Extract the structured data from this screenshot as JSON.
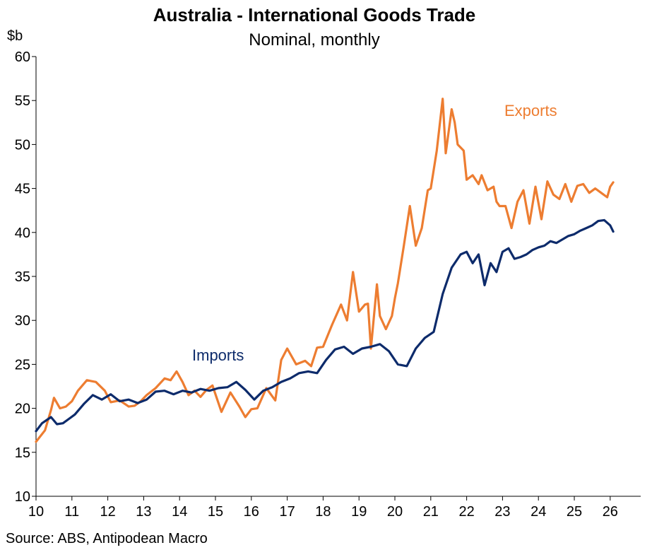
{
  "chart_data": {
    "type": "line",
    "title": "Australia - International Goods Trade",
    "subtitle": "Nominal, monthly",
    "ylabel": "$b",
    "xlabel": "",
    "ylim": [
      10,
      60
    ],
    "y_ticks": [
      10,
      15,
      20,
      25,
      30,
      35,
      40,
      45,
      50,
      55,
      60
    ],
    "x_ticks": [
      "10",
      "11",
      "12",
      "13",
      "14",
      "15",
      "16",
      "17",
      "18",
      "19",
      "20",
      "21",
      "22",
      "23",
      "24",
      "25",
      "26"
    ],
    "x_unit": "calendar year (two-digit), monthly observations",
    "grid": false,
    "source": "Source: ABS, Antipodean Macro",
    "colors": {
      "exports": "#ED7D31",
      "imports": "#0D2B6B"
    },
    "series": [
      {
        "name": "Exports",
        "x": [
          "2010-01",
          "2010-04",
          "2010-06",
          "2010-07",
          "2010-09",
          "2010-11",
          "2011-01",
          "2011-03",
          "2011-06",
          "2011-09",
          "2011-12",
          "2012-02",
          "2012-05",
          "2012-08",
          "2012-10",
          "2012-12",
          "2013-02",
          "2013-05",
          "2013-08",
          "2013-10",
          "2013-12",
          "2014-02",
          "2014-04",
          "2014-06",
          "2014-08",
          "2014-10",
          "2014-12",
          "2015-03",
          "2015-06",
          "2015-09",
          "2015-11",
          "2016-01",
          "2016-03",
          "2016-06",
          "2016-09",
          "2016-11",
          "2017-01",
          "2017-04",
          "2017-07",
          "2017-09",
          "2017-11",
          "2018-01",
          "2018-04",
          "2018-07",
          "2018-09",
          "2018-11",
          "2019-01",
          "2019-03",
          "2019-04",
          "2019-05",
          "2019-07",
          "2019-08",
          "2019-10",
          "2019-12",
          "2020-01",
          "2020-02",
          "2020-04",
          "2020-06",
          "2020-08",
          "2020-10",
          "2020-12",
          "2021-01",
          "2021-03",
          "2021-05",
          "2021-06",
          "2021-08",
          "2021-09",
          "2021-10",
          "2021-12",
          "2022-01",
          "2022-03",
          "2022-05",
          "2022-06",
          "2022-08",
          "2022-10",
          "2022-11",
          "2022-12",
          "2023-02",
          "2023-04",
          "2023-06",
          "2023-08",
          "2023-10",
          "2023-12",
          "2024-02",
          "2024-04",
          "2024-06",
          "2024-08",
          "2024-10",
          "2024-12",
          "2025-02",
          "2025-04",
          "2025-06",
          "2025-08",
          "2025-10",
          "2025-12",
          "2026-01",
          "2026-02"
        ],
        "values": [
          16.2,
          17.5,
          19.8,
          21.2,
          20.0,
          20.2,
          20.8,
          22.0,
          23.2,
          23.0,
          22.0,
          20.7,
          20.9,
          20.2,
          20.3,
          20.8,
          21.5,
          22.3,
          23.4,
          23.2,
          24.2,
          23.0,
          21.5,
          22.0,
          21.3,
          22.1,
          22.6,
          19.6,
          21.8,
          20.2,
          19.0,
          19.9,
          20.0,
          22.3,
          20.9,
          25.5,
          26.8,
          25.0,
          25.4,
          24.8,
          26.9,
          27.0,
          29.5,
          31.8,
          30.0,
          35.5,
          31.0,
          31.8,
          31.9,
          26.8,
          34.1,
          30.5,
          29.0,
          30.5,
          32.5,
          34.2,
          38.5,
          43.0,
          38.5,
          40.5,
          44.8,
          45.0,
          49.3,
          55.2,
          49.0,
          54.0,
          52.5,
          50.0,
          49.3,
          46.0,
          46.5,
          45.5,
          46.5,
          44.8,
          45.2,
          43.5,
          43.0,
          43.0,
          40.5,
          43.5,
          44.8,
          41.0,
          45.2,
          41.5,
          45.8,
          44.3,
          43.8,
          45.5,
          43.5,
          45.3,
          45.5,
          44.5,
          45.0,
          44.5,
          44.0,
          45.2,
          45.7
        ],
        "label_position": "top-right"
      },
      {
        "name": "Imports",
        "x": [
          "2010-01",
          "2010-03",
          "2010-06",
          "2010-08",
          "2010-10",
          "2010-12",
          "2011-02",
          "2011-05",
          "2011-08",
          "2011-11",
          "2012-02",
          "2012-05",
          "2012-08",
          "2012-11",
          "2013-02",
          "2013-05",
          "2013-08",
          "2013-11",
          "2014-02",
          "2014-05",
          "2014-08",
          "2014-11",
          "2015-02",
          "2015-05",
          "2015-08",
          "2015-11",
          "2016-02",
          "2016-05",
          "2016-08",
          "2016-11",
          "2017-02",
          "2017-05",
          "2017-08",
          "2017-11",
          "2018-02",
          "2018-05",
          "2018-08",
          "2018-11",
          "2019-02",
          "2019-05",
          "2019-08",
          "2019-11",
          "2020-02",
          "2020-05",
          "2020-08",
          "2020-11",
          "2021-02",
          "2021-05",
          "2021-08",
          "2021-11",
          "2022-01",
          "2022-03",
          "2022-05",
          "2022-07",
          "2022-09",
          "2022-11",
          "2023-01",
          "2023-03",
          "2023-05",
          "2023-07",
          "2023-09",
          "2023-11",
          "2024-01",
          "2024-03",
          "2024-05",
          "2024-07",
          "2024-09",
          "2024-11",
          "2025-01",
          "2025-03",
          "2025-05",
          "2025-07",
          "2025-09",
          "2025-11",
          "2026-01",
          "2026-02"
        ],
        "values": [
          17.4,
          18.3,
          19.0,
          18.2,
          18.3,
          18.8,
          19.3,
          20.5,
          21.5,
          21.0,
          21.6,
          20.8,
          21.0,
          20.6,
          21.0,
          21.9,
          22.0,
          21.6,
          22.0,
          21.8,
          22.2,
          22.0,
          22.3,
          22.4,
          23.0,
          22.1,
          21.0,
          22.0,
          22.4,
          23.0,
          23.4,
          24.0,
          24.2,
          24.0,
          25.5,
          26.7,
          27.0,
          26.2,
          26.8,
          27.0,
          27.3,
          26.5,
          25.0,
          24.8,
          26.8,
          28.0,
          28.7,
          33.0,
          36.0,
          37.5,
          37.8,
          36.5,
          37.5,
          34.0,
          36.5,
          35.5,
          37.8,
          38.2,
          37.0,
          37.2,
          37.5,
          38.0,
          38.3,
          38.5,
          39.0,
          38.8,
          39.2,
          39.6,
          39.8,
          40.2,
          40.5,
          40.8,
          41.3,
          41.4,
          40.8,
          40.1
        ],
        "label_position": "mid-left"
      }
    ]
  }
}
